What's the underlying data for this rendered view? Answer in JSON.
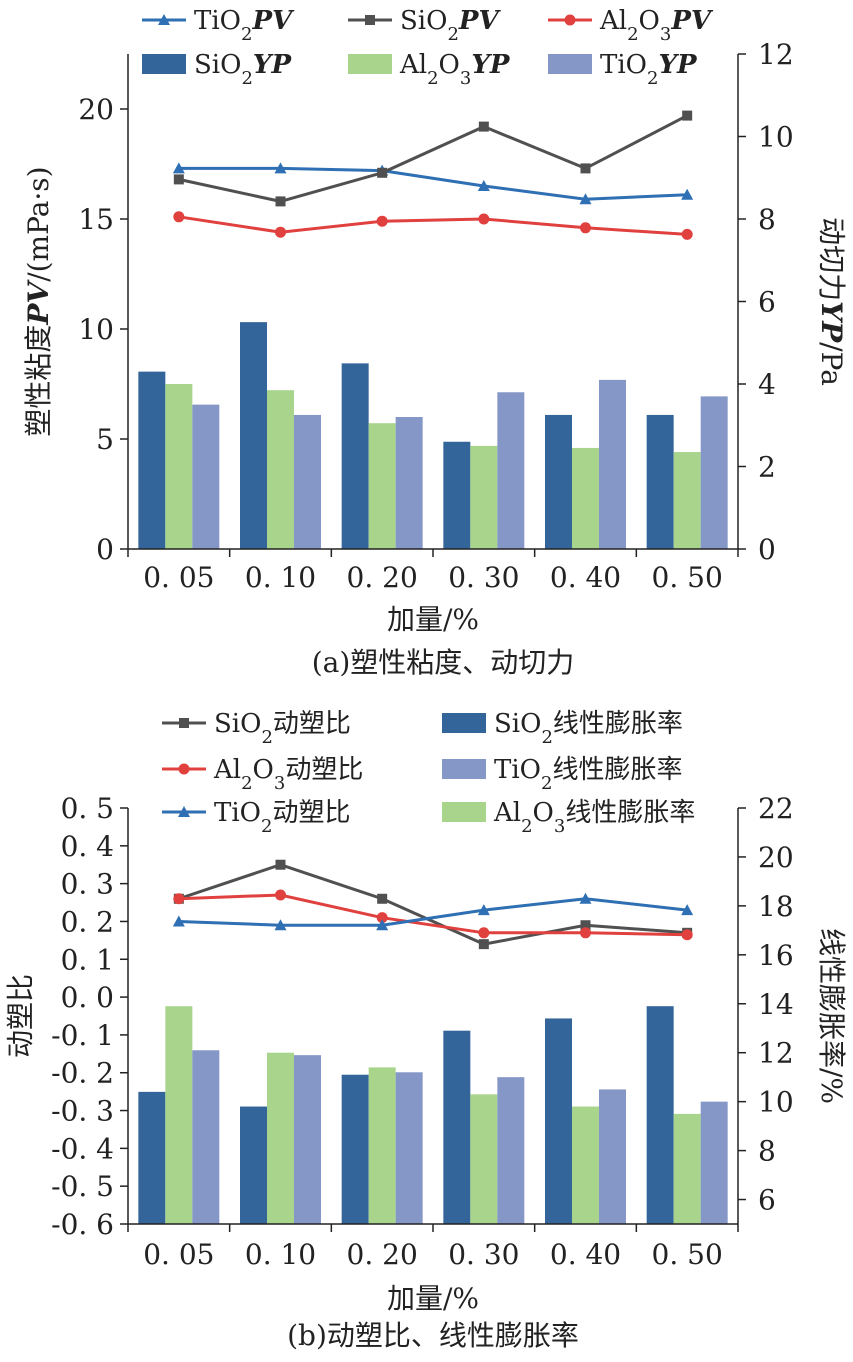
{
  "colors": {
    "sio2_bar": "#34659a",
    "al2o3_bar": "#a8d48c",
    "tio2_bar": "#8497c7",
    "tio2_line": "#2f6fb3",
    "sio2_line": "#505050",
    "al2o3_line": "#e0403e"
  },
  "chart_data": [
    {
      "type": "bar+line",
      "caption": "(a)塑性粘度、动切力",
      "categories": [
        "0. 05",
        "0. 10",
        "0. 20",
        "0. 30",
        "0. 40",
        "0. 50"
      ],
      "xlabel": "加量/%",
      "ylabel_left": "塑性粘度PV/(mPa·s)",
      "ylabel_right": "动切力YP/Pa",
      "ylim_left": [
        0,
        22.5
      ],
      "ylim_right": [
        0,
        12
      ],
      "yticks_left": [
        "0",
        "5",
        "10",
        "15",
        "20"
      ],
      "yticks_right": [
        "0",
        "2",
        "4",
        "6",
        "8",
        "10",
        "12"
      ],
      "legend_rows": [
        [
          "TiO2PV",
          "SiO2PV",
          "Al2O3PV"
        ],
        [
          "SiO2YP",
          "Al2O3YP",
          "TiO2YP"
        ]
      ],
      "line_series": [
        {
          "name": "TiO2PV",
          "values": [
            17.3,
            17.3,
            17.2,
            16.5,
            15.9,
            16.1
          ]
        },
        {
          "name": "SiO2PV",
          "values": [
            16.8,
            15.8,
            17.1,
            19.2,
            17.3,
            19.7
          ]
        },
        {
          "name": "Al2O3PV",
          "values": [
            15.1,
            14.4,
            14.9,
            15.0,
            14.6,
            14.3
          ]
        }
      ],
      "bar_series": [
        {
          "name": "SiO2YP",
          "values": [
            4.3,
            5.5,
            4.5,
            2.6,
            3.25,
            3.25
          ]
        },
        {
          "name": "Al2O3YP",
          "values": [
            4.0,
            3.85,
            3.05,
            2.5,
            2.45,
            2.35
          ]
        },
        {
          "name": "TiO2YP",
          "values": [
            3.5,
            3.25,
            3.2,
            3.8,
            4.1,
            3.7
          ]
        }
      ]
    },
    {
      "type": "bar+line",
      "caption": "(b)动塑比、线性膨胀率",
      "categories": [
        "0. 05",
        "0. 10",
        "0. 20",
        "0. 30",
        "0. 40",
        "0. 50"
      ],
      "xlabel": "加量/%",
      "ylabel_left": "动塑比",
      "ylabel_right": "线性膨胀率/%",
      "ylim_left": [
        -0.6,
        0.5
      ],
      "ylim_right": [
        5,
        22
      ],
      "yticks_left": [
        "0. 5",
        "0. 4",
        "0. 3",
        "0. 2",
        "0. 1",
        "0. 0",
        "-0. 1",
        "-0. 2",
        "-0. 3",
        "-0. 4",
        "-0. 5",
        "-0. 6"
      ],
      "yticks_right": [
        "6",
        "8",
        "10",
        "12",
        "14",
        "16",
        "18",
        "20",
        "22"
      ],
      "legend": [
        "SiO2动塑比",
        "SiO2线性膨胀率",
        "Al2O3动塑比",
        "TiO2线性膨胀率",
        "TiO2动塑比",
        "Al2O3线性膨胀率"
      ],
      "line_series": [
        {
          "name": "SiO2动塑比",
          "values": [
            0.26,
            0.35,
            0.26,
            0.14,
            0.19,
            0.17
          ]
        },
        {
          "name": "Al2O3动塑比",
          "values": [
            0.26,
            0.27,
            0.21,
            0.17,
            0.17,
            0.165
          ]
        },
        {
          "name": "TiO2动塑比",
          "values": [
            0.2,
            0.19,
            0.19,
            0.23,
            0.26,
            0.23
          ]
        }
      ],
      "bar_series": [
        {
          "name": "SiO2线性膨胀率",
          "values": [
            10.4,
            9.8,
            11.1,
            12.9,
            13.4,
            13.9
          ]
        },
        {
          "name": "Al2O3线性膨胀率",
          "values": [
            13.9,
            12.0,
            11.4,
            10.3,
            9.8,
            9.5
          ]
        },
        {
          "name": "TiO2线性膨胀率",
          "values": [
            12.1,
            11.9,
            11.2,
            11.0,
            10.5,
            10.0
          ]
        }
      ]
    }
  ]
}
